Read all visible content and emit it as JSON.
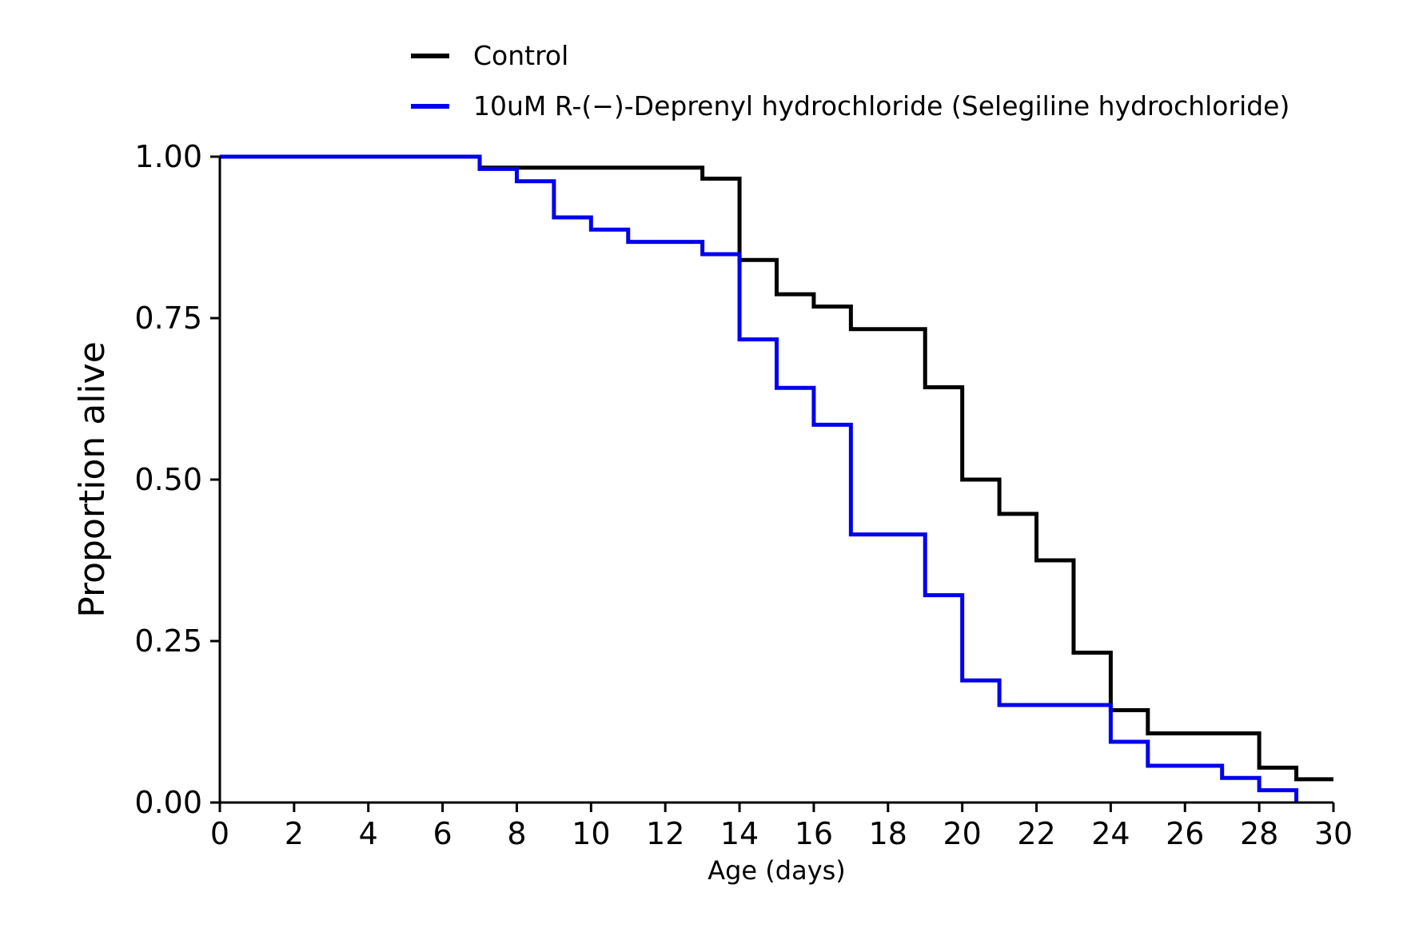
{
  "chart_data": {
    "type": "line",
    "step": "post",
    "xlabel": "Age (days)",
    "ylabel": "Proportion alive",
    "xlim": [
      0,
      30
    ],
    "ylim": [
      0,
      1
    ],
    "x_ticks": [
      0,
      2,
      4,
      6,
      8,
      10,
      12,
      14,
      16,
      18,
      20,
      22,
      24,
      26,
      28,
      30
    ],
    "y_ticks": [
      0,
      0.25,
      0.5,
      0.75,
      1
    ],
    "y_tick_labels": [
      "0.00",
      "0.25",
      "0.50",
      "0.75",
      "1.00"
    ],
    "grid": false,
    "legend": "top",
    "series": [
      {
        "name": "Control",
        "color": "#000000",
        "x": [
          0,
          7,
          13,
          14,
          15,
          16,
          17,
          19,
          20,
          21,
          22,
          23,
          24,
          25,
          28,
          29,
          30
        ],
        "y": [
          1.0,
          0.983,
          0.966,
          0.84,
          0.787,
          0.768,
          0.733,
          0.643,
          0.5,
          0.447,
          0.375,
          0.232,
          0.143,
          0.107,
          0.054,
          0.036,
          0.036
        ]
      },
      {
        "name": "10uM R-(−)-Deprenyl hydrochloride (Selegiline hydrochloride)",
        "color": "#0000ee",
        "x": [
          0,
          7,
          8,
          9,
          10,
          11,
          13,
          14,
          15,
          16,
          17,
          19,
          20,
          21,
          24,
          25,
          27,
          28,
          29
        ],
        "y": [
          1.0,
          0.981,
          0.962,
          0.906,
          0.887,
          0.868,
          0.849,
          0.717,
          0.642,
          0.585,
          0.415,
          0.321,
          0.189,
          0.151,
          0.094,
          0.057,
          0.038,
          0.019,
          0.0
        ]
      }
    ]
  }
}
